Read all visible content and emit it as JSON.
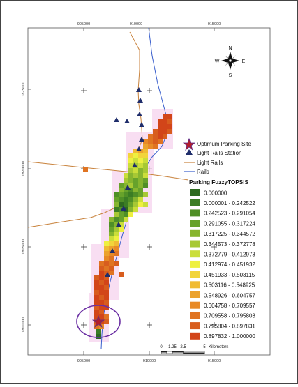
{
  "map": {
    "top_ticks": [
      "905000",
      "910000",
      "915000"
    ],
    "bottom_ticks": [
      "905000",
      "910000",
      "915000"
    ],
    "left_ticks": [
      "1825000",
      "1820000",
      "1815000",
      "1810000"
    ],
    "compass": {
      "n": "N",
      "s": "S",
      "e": "E",
      "w": "W"
    },
    "scalebar": {
      "labels": [
        "0",
        "1.25",
        "2.5",
        "5"
      ],
      "unit": "Kilometers"
    }
  },
  "legend": {
    "items": [
      {
        "label": "Optimum Parking Site",
        "icon": "star-icon"
      },
      {
        "label": "Light Rails Station",
        "icon": "triangle-icon"
      },
      {
        "label": "Light Rails",
        "icon": "line-icon",
        "color": "#c8823c"
      },
      {
        "label": "Rails",
        "icon": "line-icon",
        "color": "#3a5fcd"
      }
    ],
    "ramp_title": "Parking FuzzyTOPSIS",
    "classes": [
      {
        "label": "0.000000",
        "color": "#2d6a1f"
      },
      {
        "label": "0.000001 - 0.242522",
        "color": "#3b7d24"
      },
      {
        "label": "0.242523 - 0.291054",
        "color": "#4f8f27"
      },
      {
        "label": "0.291055 - 0.317224",
        "color": "#67a22b"
      },
      {
        "label": "0.317225 - 0.344572",
        "color": "#86b52f"
      },
      {
        "label": "0.344573 - 0.372778",
        "color": "#a7c834"
      },
      {
        "label": "0.372779 - 0.412973",
        "color": "#cade3a"
      },
      {
        "label": "0.412974 - 0.451932",
        "color": "#eef040"
      },
      {
        "label": "0.451933 - 0.503115",
        "color": "#f2d43a"
      },
      {
        "label": "0.503116 - 0.548925",
        "color": "#f0bb33"
      },
      {
        "label": "0.548926 - 0.604757",
        "color": "#eba22d"
      },
      {
        "label": "0.604758 - 0.709557",
        "color": "#e88a27"
      },
      {
        "label": "0.709558 - 0.795803",
        "color": "#e07422"
      },
      {
        "label": "0.795804 - 0.897831",
        "color": "#d85d1e"
      },
      {
        "label": "0.897832 - 1.000000",
        "color": "#d24519"
      }
    ]
  }
}
